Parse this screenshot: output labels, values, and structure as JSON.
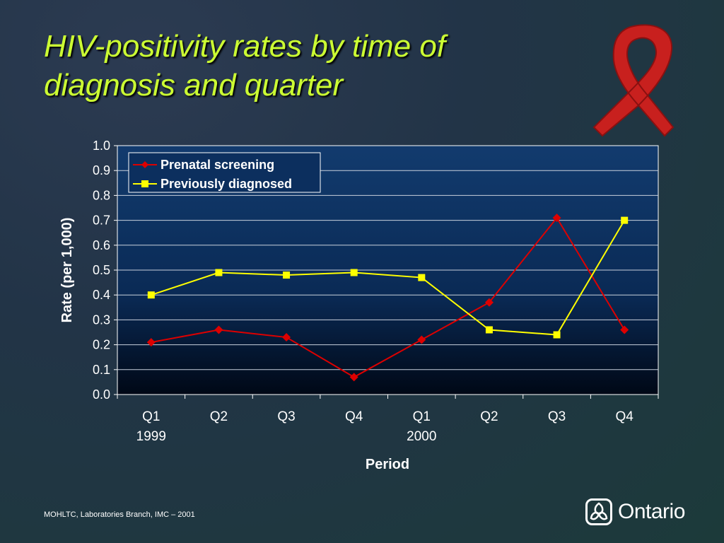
{
  "slide": {
    "title": "HIV-positivity rates by time of diagnosis and quarter",
    "footer": "MOHLTC, Laboratories Branch, IMC – 2001",
    "logo_text": "Ontario",
    "ribbon_icon": "aids-awareness-ribbon-icon"
  },
  "colors": {
    "title": "#ccff33",
    "plot_bg_top": "#123b6e",
    "plot_bg_bottom": "#000816",
    "prenatal": "#dd0000",
    "previous": "#ffff00",
    "ribbon": "#c8201e"
  },
  "chart_data": {
    "type": "line",
    "title": "",
    "xlabel": "Period",
    "ylabel": "Rate (per 1,000)",
    "ylim": [
      0,
      1.0
    ],
    "yticks": [
      "0.0",
      "0.1",
      "0.2",
      "0.3",
      "0.4",
      "0.5",
      "0.6",
      "0.7",
      "0.8",
      "0.9",
      "1.0"
    ],
    "categories": [
      "Q1",
      "Q2",
      "Q3",
      "Q4",
      "Q1",
      "Q2",
      "Q3",
      "Q4"
    ],
    "year_labels": [
      "1999",
      "",
      "",
      "",
      "2000",
      "",
      "",
      ""
    ],
    "grid": true,
    "legend_position": "top-left",
    "series": [
      {
        "name": "Prenatal screening",
        "marker": "diamond",
        "color": "#dd0000",
        "values": [
          0.21,
          0.26,
          0.23,
          0.07,
          0.22,
          0.37,
          0.71,
          0.26
        ]
      },
      {
        "name": "Previously diagnosed",
        "marker": "square",
        "color": "#ffff00",
        "values": [
          0.4,
          0.49,
          0.48,
          0.49,
          0.47,
          0.26,
          0.24,
          0.7
        ]
      }
    ]
  }
}
